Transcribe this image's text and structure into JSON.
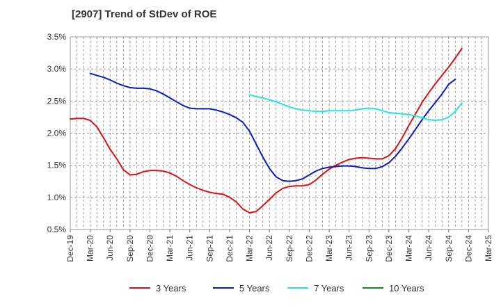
{
  "chart_data": {
    "type": "line",
    "title": "[2907]  Trend of StDev of ROE",
    "xlabel": "",
    "ylabel": "",
    "x_ticks": [
      "Dec-19",
      "Mar-20",
      "Jun-20",
      "Sep-20",
      "Dec-20",
      "Mar-21",
      "Jun-21",
      "Sep-21",
      "Dec-21",
      "Mar-22",
      "Jun-22",
      "Sep-22",
      "Dec-22",
      "Mar-23",
      "Jun-23",
      "Sep-23",
      "Dec-23",
      "Mar-24",
      "Jun-24",
      "Sep-24",
      "Dec-24",
      "Mar-25"
    ],
    "y_ticks": [
      "0.5%",
      "1.0%",
      "1.5%",
      "2.0%",
      "2.5%",
      "3.0%",
      "3.5%"
    ],
    "y_tick_values": [
      0.5,
      1.0,
      1.5,
      2.0,
      2.5,
      3.0,
      3.5
    ],
    "ylim": [
      0.5,
      3.5
    ],
    "grid": "dashed-both",
    "legend_position": "bottom",
    "colors": {
      "3 Years": "#dd1111",
      "5 Years": "#0b1ac7",
      "7 Years": "#22e5e5",
      "10 Years": "#1a8a1a"
    },
    "series": [
      {
        "name": "3 Years",
        "values": [
          [
            "Dec-19",
            2.22
          ],
          [
            "Jan-20",
            2.23
          ],
          [
            "Feb-20",
            2.23
          ],
          [
            "Mar-20",
            2.2
          ],
          [
            "Apr-20",
            2.1
          ],
          [
            "May-20",
            1.93
          ],
          [
            "Jun-20",
            1.75
          ],
          [
            "Jul-20",
            1.6
          ],
          [
            "Aug-20",
            1.43
          ],
          [
            "Sep-20",
            1.35
          ],
          [
            "Oct-20",
            1.36
          ],
          [
            "Nov-20",
            1.4
          ],
          [
            "Dec-20",
            1.42
          ],
          [
            "Jan-21",
            1.42
          ],
          [
            "Feb-21",
            1.41
          ],
          [
            "Mar-21",
            1.38
          ],
          [
            "Apr-21",
            1.33
          ],
          [
            "May-21",
            1.26
          ],
          [
            "Jun-21",
            1.2
          ],
          [
            "Jul-21",
            1.15
          ],
          [
            "Aug-21",
            1.11
          ],
          [
            "Sep-21",
            1.08
          ],
          [
            "Oct-21",
            1.06
          ],
          [
            "Nov-21",
            1.05
          ],
          [
            "Dec-21",
            1.0
          ],
          [
            "Jan-22",
            0.93
          ],
          [
            "Feb-22",
            0.82
          ],
          [
            "Mar-22",
            0.76
          ],
          [
            "Apr-22",
            0.78
          ],
          [
            "May-22",
            0.87
          ],
          [
            "Jun-22",
            0.97
          ],
          [
            "Jul-22",
            1.07
          ],
          [
            "Aug-22",
            1.14
          ],
          [
            "Sep-22",
            1.17
          ],
          [
            "Oct-22",
            1.18
          ],
          [
            "Nov-22",
            1.18
          ],
          [
            "Dec-22",
            1.2
          ],
          [
            "Jan-23",
            1.27
          ],
          [
            "Feb-23",
            1.36
          ],
          [
            "Mar-23",
            1.44
          ],
          [
            "Apr-23",
            1.5
          ],
          [
            "May-23",
            1.55
          ],
          [
            "Jun-23",
            1.59
          ],
          [
            "Jul-23",
            1.61
          ],
          [
            "Aug-23",
            1.62
          ],
          [
            "Sep-23",
            1.61
          ],
          [
            "Oct-23",
            1.6
          ],
          [
            "Nov-23",
            1.6
          ],
          [
            "Dec-23",
            1.65
          ],
          [
            "Jan-24",
            1.76
          ],
          [
            "Feb-24",
            1.93
          ],
          [
            "Mar-24",
            2.12
          ],
          [
            "Apr-24",
            2.3
          ],
          [
            "May-24",
            2.48
          ],
          [
            "Jun-24",
            2.63
          ],
          [
            "Jul-24",
            2.77
          ],
          [
            "Aug-24",
            2.9
          ],
          [
            "Sep-24",
            3.03
          ],
          [
            "Oct-24",
            3.17
          ],
          [
            "Nov-24",
            3.32
          ]
        ]
      },
      {
        "name": "5 Years",
        "values": [
          [
            "Mar-20",
            2.93
          ],
          [
            "Apr-20",
            2.9
          ],
          [
            "May-20",
            2.87
          ],
          [
            "Jun-20",
            2.83
          ],
          [
            "Jul-20",
            2.78
          ],
          [
            "Aug-20",
            2.74
          ],
          [
            "Sep-20",
            2.71
          ],
          [
            "Oct-20",
            2.7
          ],
          [
            "Nov-20",
            2.7
          ],
          [
            "Dec-20",
            2.69
          ],
          [
            "Jan-21",
            2.66
          ],
          [
            "Feb-21",
            2.61
          ],
          [
            "Mar-21",
            2.55
          ],
          [
            "Apr-21",
            2.49
          ],
          [
            "May-21",
            2.43
          ],
          [
            "Jun-21",
            2.39
          ],
          [
            "Jul-21",
            2.38
          ],
          [
            "Aug-21",
            2.38
          ],
          [
            "Sep-21",
            2.38
          ],
          [
            "Oct-21",
            2.36
          ],
          [
            "Nov-21",
            2.33
          ],
          [
            "Dec-21",
            2.29
          ],
          [
            "Jan-22",
            2.24
          ],
          [
            "Feb-22",
            2.17
          ],
          [
            "Mar-22",
            2.03
          ],
          [
            "Apr-22",
            1.83
          ],
          [
            "May-22",
            1.63
          ],
          [
            "Jun-22",
            1.45
          ],
          [
            "Jul-22",
            1.32
          ],
          [
            "Aug-22",
            1.26
          ],
          [
            "Sep-22",
            1.25
          ],
          [
            "Oct-22",
            1.26
          ],
          [
            "Nov-22",
            1.29
          ],
          [
            "Dec-22",
            1.35
          ],
          [
            "Jan-23",
            1.41
          ],
          [
            "Feb-23",
            1.45
          ],
          [
            "Mar-23",
            1.47
          ],
          [
            "Apr-23",
            1.48
          ],
          [
            "May-23",
            1.49
          ],
          [
            "Jun-23",
            1.49
          ],
          [
            "Jul-23",
            1.48
          ],
          [
            "Aug-23",
            1.46
          ],
          [
            "Sep-23",
            1.45
          ],
          [
            "Oct-23",
            1.45
          ],
          [
            "Nov-23",
            1.48
          ],
          [
            "Dec-23",
            1.54
          ],
          [
            "Jan-24",
            1.64
          ],
          [
            "Feb-24",
            1.77
          ],
          [
            "Mar-24",
            1.91
          ],
          [
            "Apr-24",
            2.06
          ],
          [
            "May-24",
            2.21
          ],
          [
            "Jun-24",
            2.35
          ],
          [
            "Jul-24",
            2.48
          ],
          [
            "Aug-24",
            2.61
          ],
          [
            "Sep-24",
            2.76
          ],
          [
            "Oct-24",
            2.84
          ]
        ]
      },
      {
        "name": "7 Years",
        "values": [
          [
            "Mar-22",
            2.6
          ],
          [
            "Apr-22",
            2.57
          ],
          [
            "May-22",
            2.55
          ],
          [
            "Jun-22",
            2.52
          ],
          [
            "Jul-22",
            2.49
          ],
          [
            "Aug-22",
            2.45
          ],
          [
            "Sep-22",
            2.41
          ],
          [
            "Oct-22",
            2.38
          ],
          [
            "Nov-22",
            2.36
          ],
          [
            "Dec-22",
            2.35
          ],
          [
            "Jan-23",
            2.34
          ],
          [
            "Feb-23",
            2.34
          ],
          [
            "Mar-23",
            2.35
          ],
          [
            "Apr-23",
            2.35
          ],
          [
            "May-23",
            2.35
          ],
          [
            "Jun-23",
            2.35
          ],
          [
            "Jul-23",
            2.36
          ],
          [
            "Aug-23",
            2.38
          ],
          [
            "Sep-23",
            2.39
          ],
          [
            "Oct-23",
            2.38
          ],
          [
            "Nov-23",
            2.35
          ],
          [
            "Dec-23",
            2.32
          ],
          [
            "Jan-24",
            2.31
          ],
          [
            "Feb-24",
            2.3
          ],
          [
            "Mar-24",
            2.29
          ],
          [
            "Apr-24",
            2.27
          ],
          [
            "May-24",
            2.24
          ],
          [
            "Jun-24",
            2.21
          ],
          [
            "Jul-24",
            2.2
          ],
          [
            "Aug-24",
            2.21
          ],
          [
            "Sep-24",
            2.25
          ],
          [
            "Oct-24",
            2.34
          ],
          [
            "Nov-24",
            2.47
          ]
        ]
      },
      {
        "name": "10 Years",
        "values": []
      }
    ]
  }
}
